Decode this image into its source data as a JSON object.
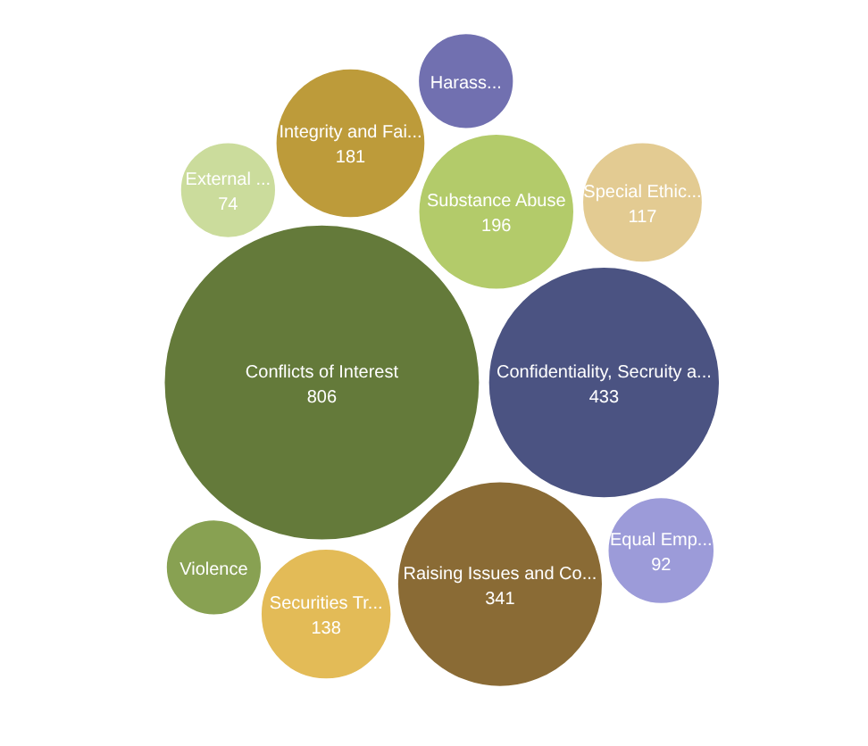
{
  "chart_data": {
    "type": "other",
    "categories": [
      "Conflicts of Interest",
      "Confidentiality, Secruity a...",
      "Raising Issues and Co...",
      "Substance Abuse",
      "Integrity and Fai...",
      "Securities Tr...",
      "Special Ethic...",
      "Equal Emp...",
      "External ...",
      "Violence",
      "Harass..."
    ],
    "values": [
      806,
      433,
      341,
      196,
      181,
      138,
      117,
      92,
      74,
      null,
      null
    ],
    "data_labels": true,
    "colors": [
      "#647a3a",
      "#4b5382",
      "#8a6b35",
      "#b3cb6a",
      "#bd9b3a",
      "#e3bb57",
      "#e3cb92",
      "#9c9bd9",
      "#cbdc9c",
      "#88a152",
      "#7170b0"
    ]
  }
}
